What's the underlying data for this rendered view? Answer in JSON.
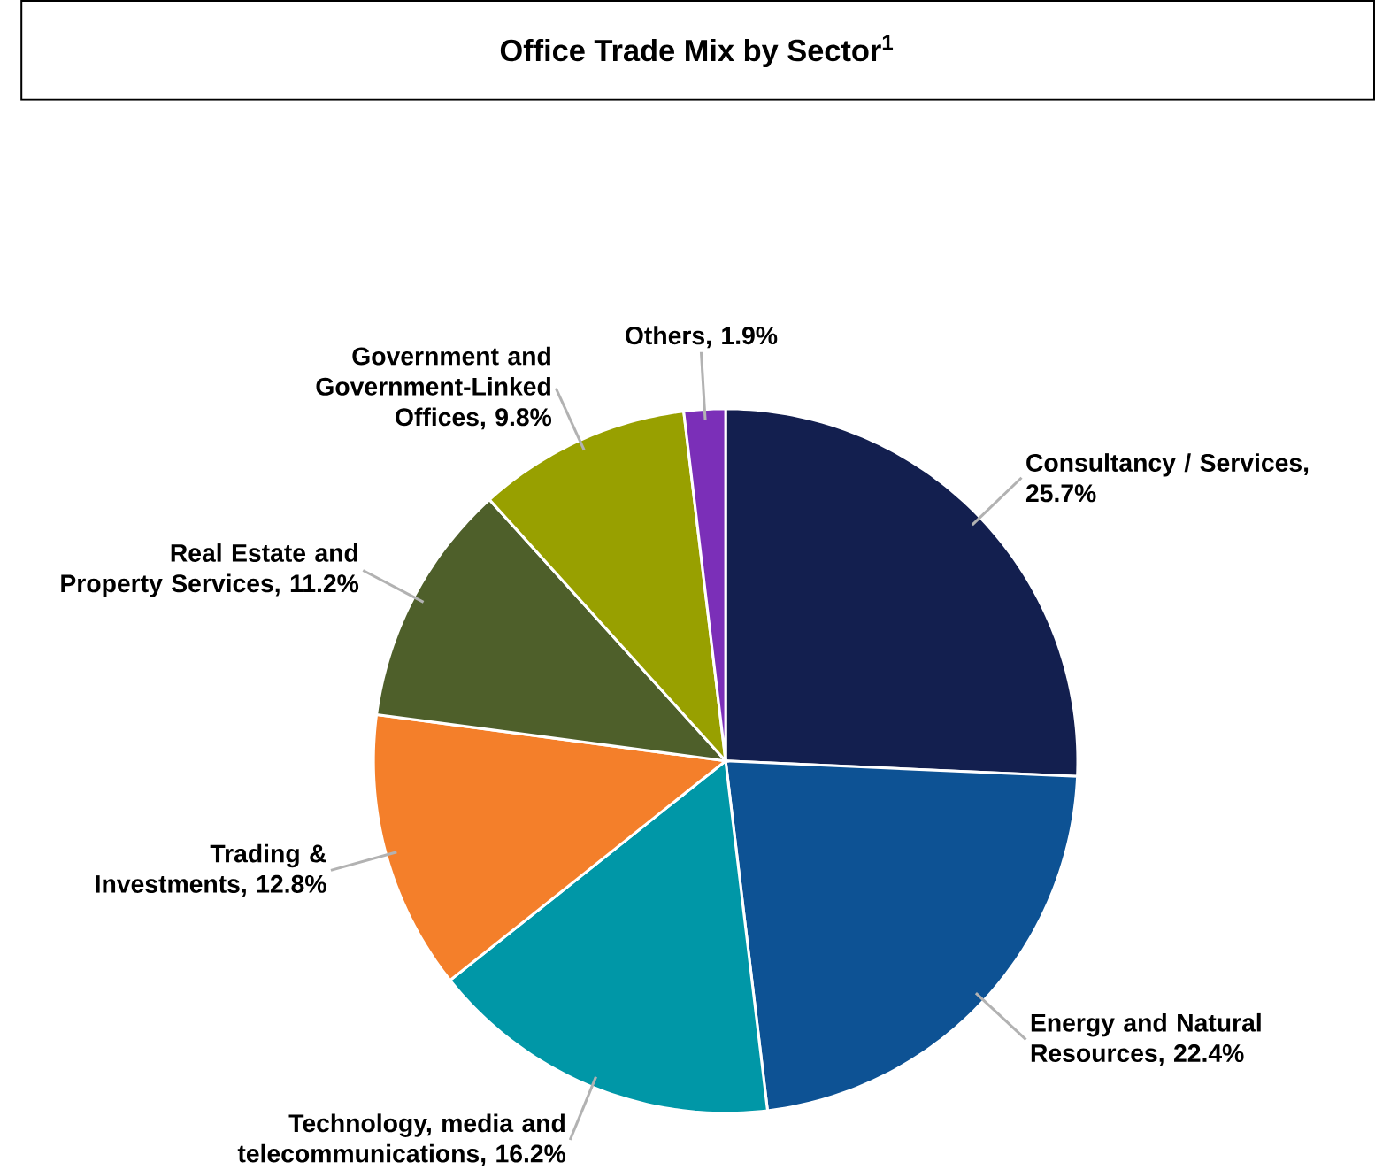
{
  "chart_data": {
    "type": "pie",
    "title": "Office Trade Mix by Sector$^{1}$",
    "categories": [
      "Consultancy / Services, 25.7%",
      "Energy and Natural Resources, 22.4%",
      "Technology, media and telecommunications, 16.2%",
      "Trading & Investments, 12.8%",
      "Real Estate and Property Services, 11.2%",
      "Government and Government-Linked Offices, 9.8%",
      "Others, 1.9%"
    ],
    "values": [
      25.7,
      22.4,
      16.2,
      12.8,
      11.2,
      9.8,
      1.9
    ],
    "colors": [
      "#131f4f",
      "#0d5294",
      "#0097a7",
      "#f47f2a",
      "#4e5f2a",
      "#98a000",
      "#7b2fb8"
    ]
  }
}
